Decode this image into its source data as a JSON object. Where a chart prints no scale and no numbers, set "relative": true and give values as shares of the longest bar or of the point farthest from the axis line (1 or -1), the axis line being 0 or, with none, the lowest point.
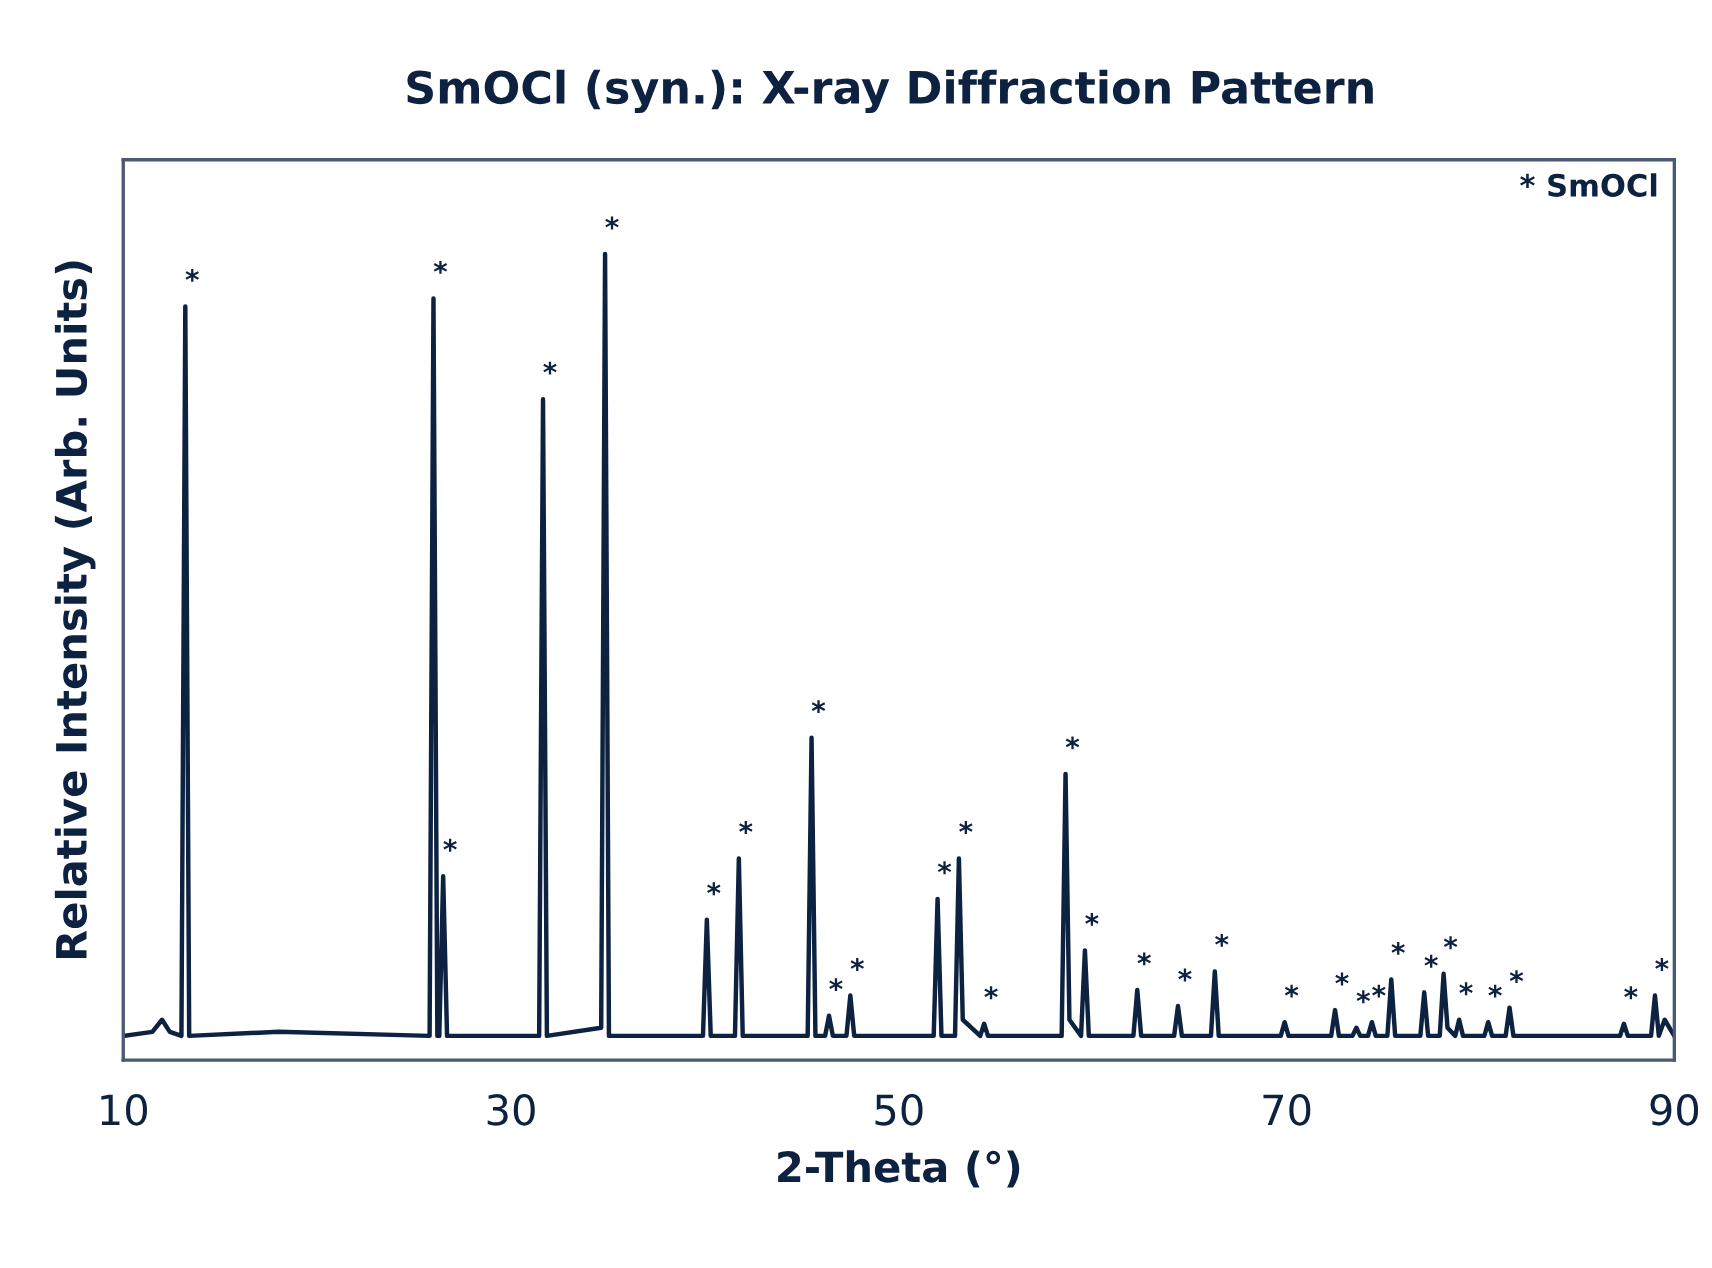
{
  "chart_data": {
    "type": "line",
    "relative": true,
    "title": "SmOCl (syn.): X-ray Diffraction Pattern",
    "xlabel": "2-Theta (°)",
    "ylabel": "Relative Intensity (Arb. Units)",
    "xlim": [
      10,
      90
    ],
    "xticks": [
      10,
      30,
      50,
      70,
      90
    ],
    "tick_labels": "x",
    "grid": false,
    "legend": false,
    "marker": "none",
    "line_style": "solid",
    "series": [
      {
        "color": "#0d2240",
        "x": [
          10,
          11.5,
          12.0,
          12.4,
          13.0,
          13.2,
          13.4,
          18,
          25.8,
          26.0,
          26.2,
          26.3,
          26.5,
          26.7,
          31.45,
          31.65,
          31.85,
          34.65,
          34.85,
          35.05,
          39.9,
          40.1,
          40.3,
          41.55,
          41.75,
          41.95,
          45.3,
          45.5,
          45.7,
          46.2,
          46.4,
          46.6,
          47.3,
          47.5,
          47.7,
          51.8,
          52.0,
          52.2,
          52.9,
          53.1,
          53.3,
          54.2,
          54.4,
          54.6,
          58.4,
          58.6,
          58.8,
          59.4,
          59.6,
          59.8,
          62.1,
          62.3,
          62.5,
          64.2,
          64.4,
          64.6,
          66.1,
          66.3,
          66.5,
          69.7,
          69.9,
          70.1,
          72.3,
          72.5,
          72.7,
          73.4,
          73.6,
          73.8,
          74.2,
          74.4,
          74.6,
          75.2,
          75.4,
          75.6,
          76.9,
          77.1,
          77.3,
          77.9,
          78.1,
          78.3,
          78.7,
          78.9,
          79.1,
          80.2,
          80.4,
          80.6,
          81.3,
          81.5,
          81.7,
          87.2,
          87.4,
          87.6,
          88.8,
          89.0,
          89.2,
          89.5,
          90
        ],
        "values": [
          0.03,
          0.035,
          0.05,
          0.035,
          0.03,
          0.935,
          0.03,
          0.035,
          0.03,
          0.945,
          0.03,
          0.03,
          0.228,
          0.03,
          0.03,
          0.82,
          0.03,
          0.04,
          1,
          0.03,
          0.03,
          0.174,
          0.03,
          0.03,
          0.25,
          0.03,
          0.03,
          0.4,
          0.03,
          0.03,
          0.055,
          0.03,
          0.03,
          0.08,
          0.03,
          0.03,
          0.2,
          0.03,
          0.03,
          0.25,
          0.05,
          0.03,
          0.045,
          0.03,
          0.03,
          0.355,
          0.05,
          0.03,
          0.136,
          0.03,
          0.03,
          0.087,
          0.03,
          0.03,
          0.067,
          0.03,
          0.03,
          0.11,
          0.03,
          0.03,
          0.047,
          0.03,
          0.03,
          0.062,
          0.03,
          0.03,
          0.04,
          0.03,
          0.03,
          0.047,
          0.03,
          0.03,
          0.1,
          0.03,
          0.03,
          0.084,
          0.03,
          0.03,
          0.107,
          0.04,
          0.03,
          0.05,
          0.03,
          0.03,
          0.047,
          0.03,
          0.03,
          0.065,
          0.03,
          0.03,
          0.045,
          0.03,
          0.03,
          0.08,
          0.03,
          0.05,
          0.03
        ]
      }
    ],
    "annotations": [
      "* SmOCl",
      {
        "text": "*",
        "x": 13.2,
        "y": 0.935
      },
      {
        "text": "*",
        "x": 26.0,
        "y": 0.945
      },
      {
        "text": "*",
        "x": 26.5,
        "y": 0.228
      },
      {
        "text": "*",
        "x": 31.65,
        "y": 0.82
      },
      {
        "text": "*",
        "x": 34.85,
        "y": 1
      },
      {
        "text": "*",
        "x": 40.1,
        "y": 0.174
      },
      {
        "text": "*",
        "x": 41.75,
        "y": 0.25
      },
      {
        "text": "*",
        "x": 45.5,
        "y": 0.4
      },
      {
        "text": "*",
        "x": 46.4,
        "y": 0.055
      },
      {
        "text": "*",
        "x": 47.5,
        "y": 0.08
      },
      {
        "text": "*",
        "x": 52.0,
        "y": 0.2
      },
      {
        "text": "*",
        "x": 53.1,
        "y": 0.25
      },
      {
        "text": "*",
        "x": 54.4,
        "y": 0.045
      },
      {
        "text": "*",
        "x": 58.6,
        "y": 0.355
      },
      {
        "text": "*",
        "x": 59.6,
        "y": 0.136
      },
      {
        "text": "*",
        "x": 62.3,
        "y": 0.087
      },
      {
        "text": "*",
        "x": 64.4,
        "y": 0.067
      },
      {
        "text": "*",
        "x": 66.3,
        "y": 0.11
      },
      {
        "text": "*",
        "x": 69.9,
        "y": 0.047
      },
      {
        "text": "*",
        "x": 72.5,
        "y": 0.062
      },
      {
        "text": "*",
        "x": 73.6,
        "y": 0.04
      },
      {
        "text": "*",
        "x": 74.4,
        "y": 0.047
      },
      {
        "text": "*",
        "x": 75.4,
        "y": 0.1
      },
      {
        "text": "*",
        "x": 77.1,
        "y": 0.084
      },
      {
        "text": "*",
        "x": 78.1,
        "y": 0.107
      },
      {
        "text": "*",
        "x": 78.9,
        "y": 0.05
      },
      {
        "text": "*",
        "x": 80.4,
        "y": 0.047
      },
      {
        "text": "*",
        "x": 81.5,
        "y": 0.065
      },
      {
        "text": "*",
        "x": 87.4,
        "y": 0.045
      },
      {
        "text": "*",
        "x": 89.0,
        "y": 0.08
      }
    ]
  }
}
